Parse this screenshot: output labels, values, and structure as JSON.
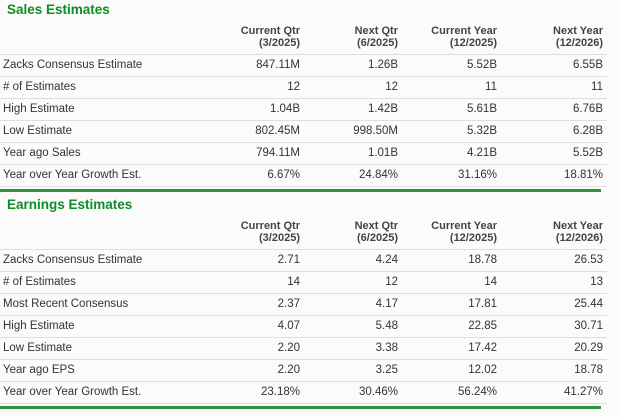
{
  "colors": {
    "title_green": "#0e8c26",
    "rule_green": "#2f9440",
    "row_line": "#dedede",
    "text": "#333333",
    "header_text": "#444444",
    "background": "#fbfbfb"
  },
  "columns": [
    {
      "label": "Current Qtr",
      "period": "(3/2025)"
    },
    {
      "label": "Next Qtr",
      "period": "(6/2025)"
    },
    {
      "label": "Current Year",
      "period": "(12/2025)"
    },
    {
      "label": "Next Year",
      "period": "(12/2026)"
    }
  ],
  "tables": [
    {
      "title": "Sales Estimates",
      "rows": [
        {
          "label": "Zacks Consensus Estimate",
          "values": [
            "847.11M",
            "1.26B",
            "5.52B",
            "6.55B"
          ]
        },
        {
          "label": "# of Estimates",
          "values": [
            "12",
            "12",
            "11",
            "11"
          ]
        },
        {
          "label": "High Estimate",
          "values": [
            "1.04B",
            "1.42B",
            "5.61B",
            "6.76B"
          ]
        },
        {
          "label": "Low Estimate",
          "values": [
            "802.45M",
            "998.50M",
            "5.32B",
            "6.28B"
          ]
        },
        {
          "label": "Year ago Sales",
          "values": [
            "794.11M",
            "1.01B",
            "4.21B",
            "5.52B"
          ]
        },
        {
          "label": "Year over Year Growth Est.",
          "values": [
            "6.67%",
            "24.84%",
            "31.16%",
            "18.81%"
          ]
        }
      ]
    },
    {
      "title": "Earnings Estimates",
      "rows": [
        {
          "label": "Zacks Consensus Estimate",
          "values": [
            "2.71",
            "4.24",
            "18.78",
            "26.53"
          ]
        },
        {
          "label": "# of Estimates",
          "values": [
            "14",
            "12",
            "14",
            "13"
          ]
        },
        {
          "label": "Most Recent Consensus",
          "values": [
            "2.37",
            "4.17",
            "17.81",
            "25.44"
          ]
        },
        {
          "label": "High Estimate",
          "values": [
            "4.07",
            "5.48",
            "22.85",
            "30.71"
          ]
        },
        {
          "label": "Low Estimate",
          "values": [
            "2.20",
            "3.38",
            "17.42",
            "20.29"
          ]
        },
        {
          "label": "Year ago EPS",
          "values": [
            "2.20",
            "3.25",
            "12.02",
            "18.78"
          ]
        },
        {
          "label": "Year over Year Growth Est.",
          "values": [
            "23.18%",
            "30.46%",
            "56.24%",
            "41.27%"
          ]
        }
      ]
    }
  ]
}
